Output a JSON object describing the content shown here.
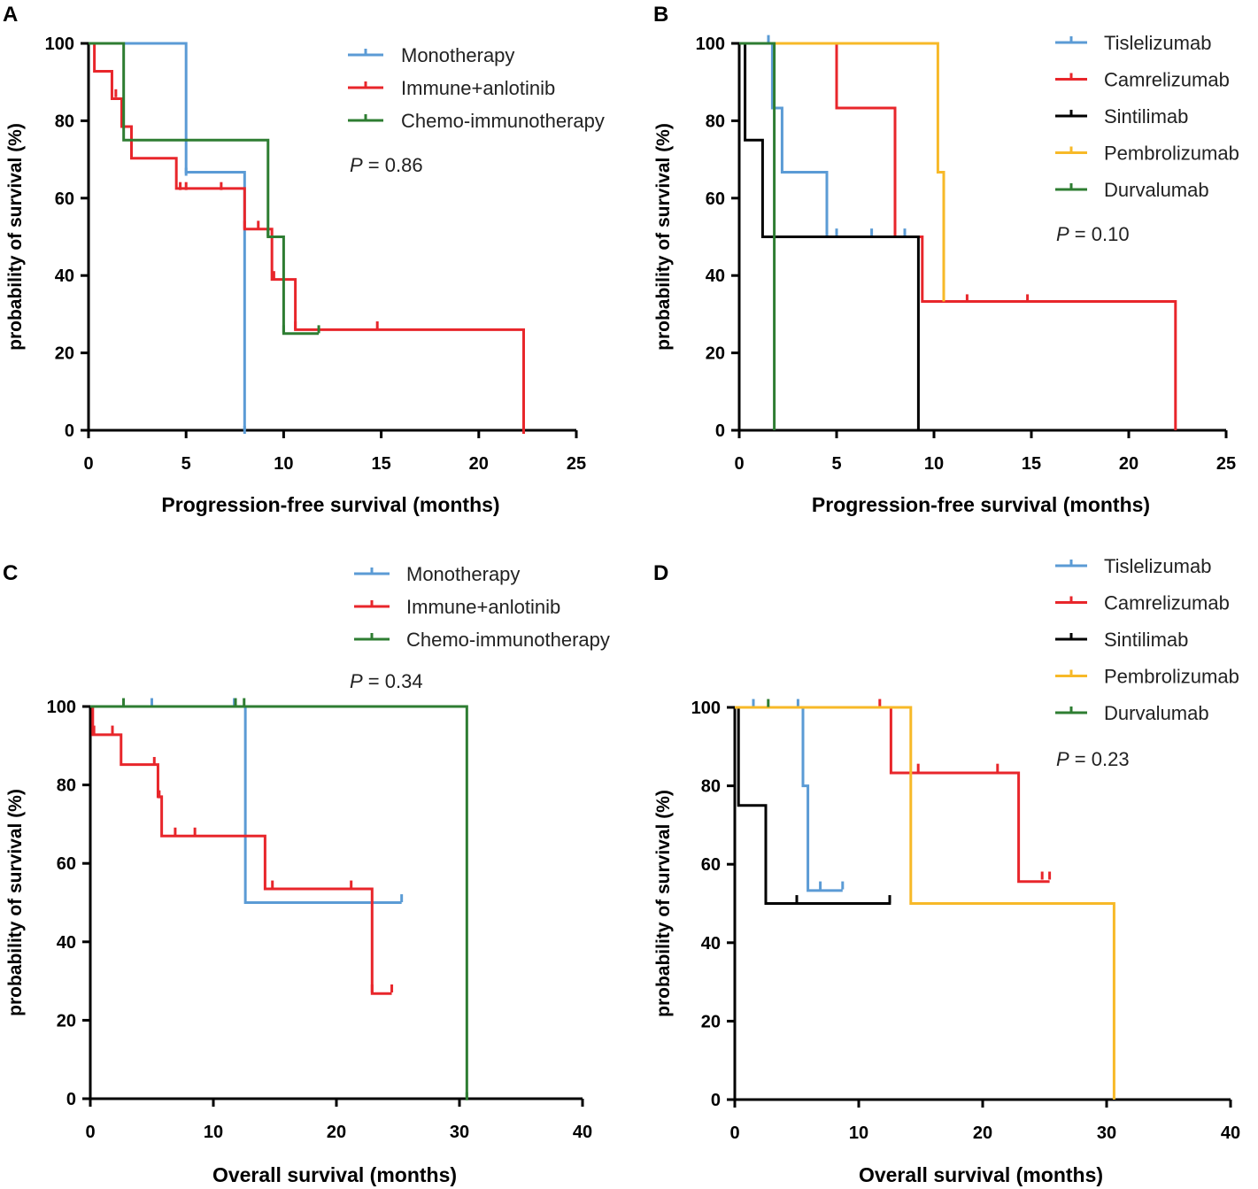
{
  "chart_data": [
    {
      "panel": "A",
      "type": "line",
      "step": true,
      "xlabel": "Progression-free survival (months)",
      "ylabel": "probability of survival (%)",
      "xlim": [
        0,
        25
      ],
      "ylim": [
        0,
        100
      ],
      "xticks": [
        0,
        5,
        10,
        15,
        20,
        25
      ],
      "yticks": [
        0,
        20,
        40,
        60,
        80,
        100
      ],
      "pvalue": {
        "label": "P",
        "text": " = 0.86"
      },
      "series": [
        {
          "name": "Monotherapy",
          "color": "#5b9bd5",
          "steps": [
            [
              0,
              100
            ],
            [
              5,
              66.7
            ],
            [
              8,
              0
            ]
          ],
          "end": 8,
          "censored": [
            [
              5,
              66.7
            ],
            [
              8,
              0
            ]
          ]
        },
        {
          "name": "Immune+anlotinib",
          "color": "#e8262b",
          "steps": [
            [
              0,
              100
            ],
            [
              0.3,
              92.8
            ],
            [
              1.2,
              85.7
            ],
            [
              1.7,
              78.5
            ],
            [
              2.2,
              70.3
            ],
            [
              4.5,
              62.5
            ],
            [
              8,
              52
            ],
            [
              9.4,
              39
            ],
            [
              10.6,
              26
            ],
            [
              22.3,
              0
            ]
          ],
          "end": 22.3,
          "censored": [
            [
              1.4,
              87
            ],
            [
              1.7,
              80
            ],
            [
              2.2,
              71
            ],
            [
              4.7,
              63
            ],
            [
              5,
              63
            ],
            [
              6.8,
              63
            ],
            [
              8,
              53
            ],
            [
              8.7,
              53
            ],
            [
              9.5,
              40
            ],
            [
              10.6,
              27
            ],
            [
              14.8,
              27
            ],
            [
              22.3,
              0
            ]
          ]
        },
        {
          "name": "Chemo-immunotherapy",
          "color": "#2e7d32",
          "steps": [
            [
              0,
              100
            ],
            [
              1.8,
              75
            ],
            [
              9.2,
              50
            ],
            [
              10,
              25
            ]
          ],
          "end": 11.8,
          "censored": [
            [
              9.2,
              51
            ],
            [
              10,
              26
            ],
            [
              11.8,
              26
            ]
          ]
        }
      ]
    },
    {
      "panel": "B",
      "type": "line",
      "step": true,
      "xlabel": "Progression-free survival (months)",
      "ylabel": "probability of survival (%)",
      "xlim": [
        0,
        25
      ],
      "ylim": [
        0,
        100
      ],
      "xticks": [
        0,
        5,
        10,
        15,
        20,
        25
      ],
      "yticks": [
        0,
        20,
        40,
        60,
        80,
        100
      ],
      "pvalue": {
        "label": "P",
        "text": " = 0.10"
      },
      "series": [
        {
          "name": "Tislelizumab",
          "color": "#5b9bd5",
          "steps": [
            [
              0,
              100
            ],
            [
              1.7,
              83.3
            ],
            [
              2.2,
              66.7
            ],
            [
              4.5,
              50
            ]
          ],
          "end": 8.8,
          "censored": [
            [
              1.5,
              101
            ],
            [
              5,
              51
            ],
            [
              6.8,
              51
            ],
            [
              8.5,
              51
            ]
          ]
        },
        {
          "name": "Camrelizumab",
          "color": "#e8262b",
          "steps": [
            [
              0,
              100
            ],
            [
              5,
              83.3
            ],
            [
              8,
              50
            ],
            [
              9.4,
              33.3
            ],
            [
              22.4,
              0
            ]
          ],
          "end": 22.4,
          "censored": [
            [
              11.7,
              34
            ],
            [
              14.8,
              34
            ]
          ]
        },
        {
          "name": "Sintilimab",
          "color": "#000000",
          "steps": [
            [
              0,
              100
            ],
            [
              0.3,
              75
            ],
            [
              1.2,
              50
            ],
            [
              9.2,
              0
            ]
          ],
          "end": 9.2,
          "censored": []
        },
        {
          "name": "Pembrolizumab",
          "color": "#f7b928",
          "steps": [
            [
              0,
              100
            ],
            [
              10.2,
              66.7
            ],
            [
              10.5,
              33.3
            ]
          ],
          "end": 10.5,
          "censored": []
        },
        {
          "name": "Durvalumab",
          "color": "#2e7d32",
          "steps": [
            [
              0,
              100
            ],
            [
              1.8,
              0
            ]
          ],
          "end": 1.8,
          "censored": []
        }
      ]
    },
    {
      "panel": "C",
      "type": "line",
      "step": true,
      "xlabel": "Overall survival (months)",
      "ylabel": "probability of survival (%)",
      "xlim": [
        0,
        40
      ],
      "ylim": [
        0,
        100
      ],
      "xticks": [
        0,
        10,
        20,
        30,
        40
      ],
      "yticks": [
        0,
        20,
        40,
        60,
        80,
        100
      ],
      "pvalue": {
        "label": "P",
        "text": " = 0.34"
      },
      "series": [
        {
          "name": "Monotherapy",
          "color": "#5b9bd5",
          "steps": [
            [
              0,
              100
            ],
            [
              12.6,
              50
            ]
          ],
          "end": 25.3,
          "censored": [
            [
              5,
              101
            ],
            [
              11.7,
              101
            ],
            [
              25.3,
              51
            ]
          ]
        },
        {
          "name": "Immune+anlotinib",
          "color": "#e8262b",
          "steps": [
            [
              0,
              100
            ],
            [
              0.2,
              92.8
            ],
            [
              2.5,
              85.2
            ],
            [
              5.5,
              77
            ],
            [
              5.8,
              67
            ],
            [
              14.2,
              53.5
            ],
            [
              22.9,
              26.8
            ]
          ],
          "end": 24.5,
          "censored": [
            [
              0.3,
              94
            ],
            [
              1.8,
              94
            ],
            [
              5.2,
              86
            ],
            [
              5.6,
              77.5
            ],
            [
              6.9,
              68
            ],
            [
              8.5,
              68
            ],
            [
              14.8,
              54.5
            ],
            [
              21.2,
              54.5
            ],
            [
              22.9,
              28
            ],
            [
              24.5,
              28
            ]
          ]
        },
        {
          "name": "Chemo-immunotherapy",
          "color": "#2e7d32",
          "steps": [
            [
              0,
              100
            ],
            [
              30.6,
              0
            ]
          ],
          "end": 30.6,
          "censored": [
            [
              2.7,
              101
            ],
            [
              11.8,
              101
            ],
            [
              12.5,
              101
            ],
            [
              30.6,
              0.5
            ]
          ]
        }
      ]
    },
    {
      "panel": "D",
      "type": "line",
      "step": true,
      "xlabel": "Overall survival (months)",
      "ylabel": "probability of survival (%)",
      "xlim": [
        0,
        40
      ],
      "ylim": [
        0,
        100
      ],
      "xticks": [
        0,
        10,
        20,
        30,
        40
      ],
      "yticks": [
        0,
        20,
        40,
        60,
        80,
        100
      ],
      "pvalue": {
        "label": "P",
        "text": " = 0.23"
      },
      "series": [
        {
          "name": "Tislelizumab",
          "color": "#5b9bd5",
          "steps": [
            [
              0,
              100
            ],
            [
              5.5,
              80
            ],
            [
              5.9,
              53.3
            ]
          ],
          "end": 8.7,
          "censored": [
            [
              1.5,
              101
            ],
            [
              5.1,
              101
            ],
            [
              5.5,
              81
            ],
            [
              6.9,
              54.5
            ],
            [
              8.7,
              54.5
            ]
          ]
        },
        {
          "name": "Camrelizumab",
          "color": "#e8262b",
          "steps": [
            [
              0,
              100
            ],
            [
              12.6,
              83.3
            ],
            [
              22.9,
              55.6
            ]
          ],
          "end": 25.4,
          "censored": [
            [
              11.7,
              101
            ],
            [
              14.8,
              84.5
            ],
            [
              21.2,
              84.5
            ],
            [
              24.8,
              57
            ],
            [
              25.4,
              57
            ]
          ]
        },
        {
          "name": "Sintilimab",
          "color": "#000000",
          "steps": [
            [
              0,
              100
            ],
            [
              0.3,
              75
            ],
            [
              2.5,
              50
            ]
          ],
          "end": 12.6,
          "censored": [
            [
              5,
              51
            ],
            [
              12.5,
              51
            ]
          ]
        },
        {
          "name": "Pembrolizumab",
          "color": "#f7b928",
          "steps": [
            [
              0,
              100
            ],
            [
              14.2,
              50
            ],
            [
              30.6,
              0
            ]
          ],
          "end": 30.6,
          "censored": []
        },
        {
          "name": "Durvalumab",
          "color": "#2e7d32",
          "steps": [],
          "end": 2.7,
          "censored": [
            [
              2.7,
              101
            ]
          ]
        }
      ]
    }
  ]
}
